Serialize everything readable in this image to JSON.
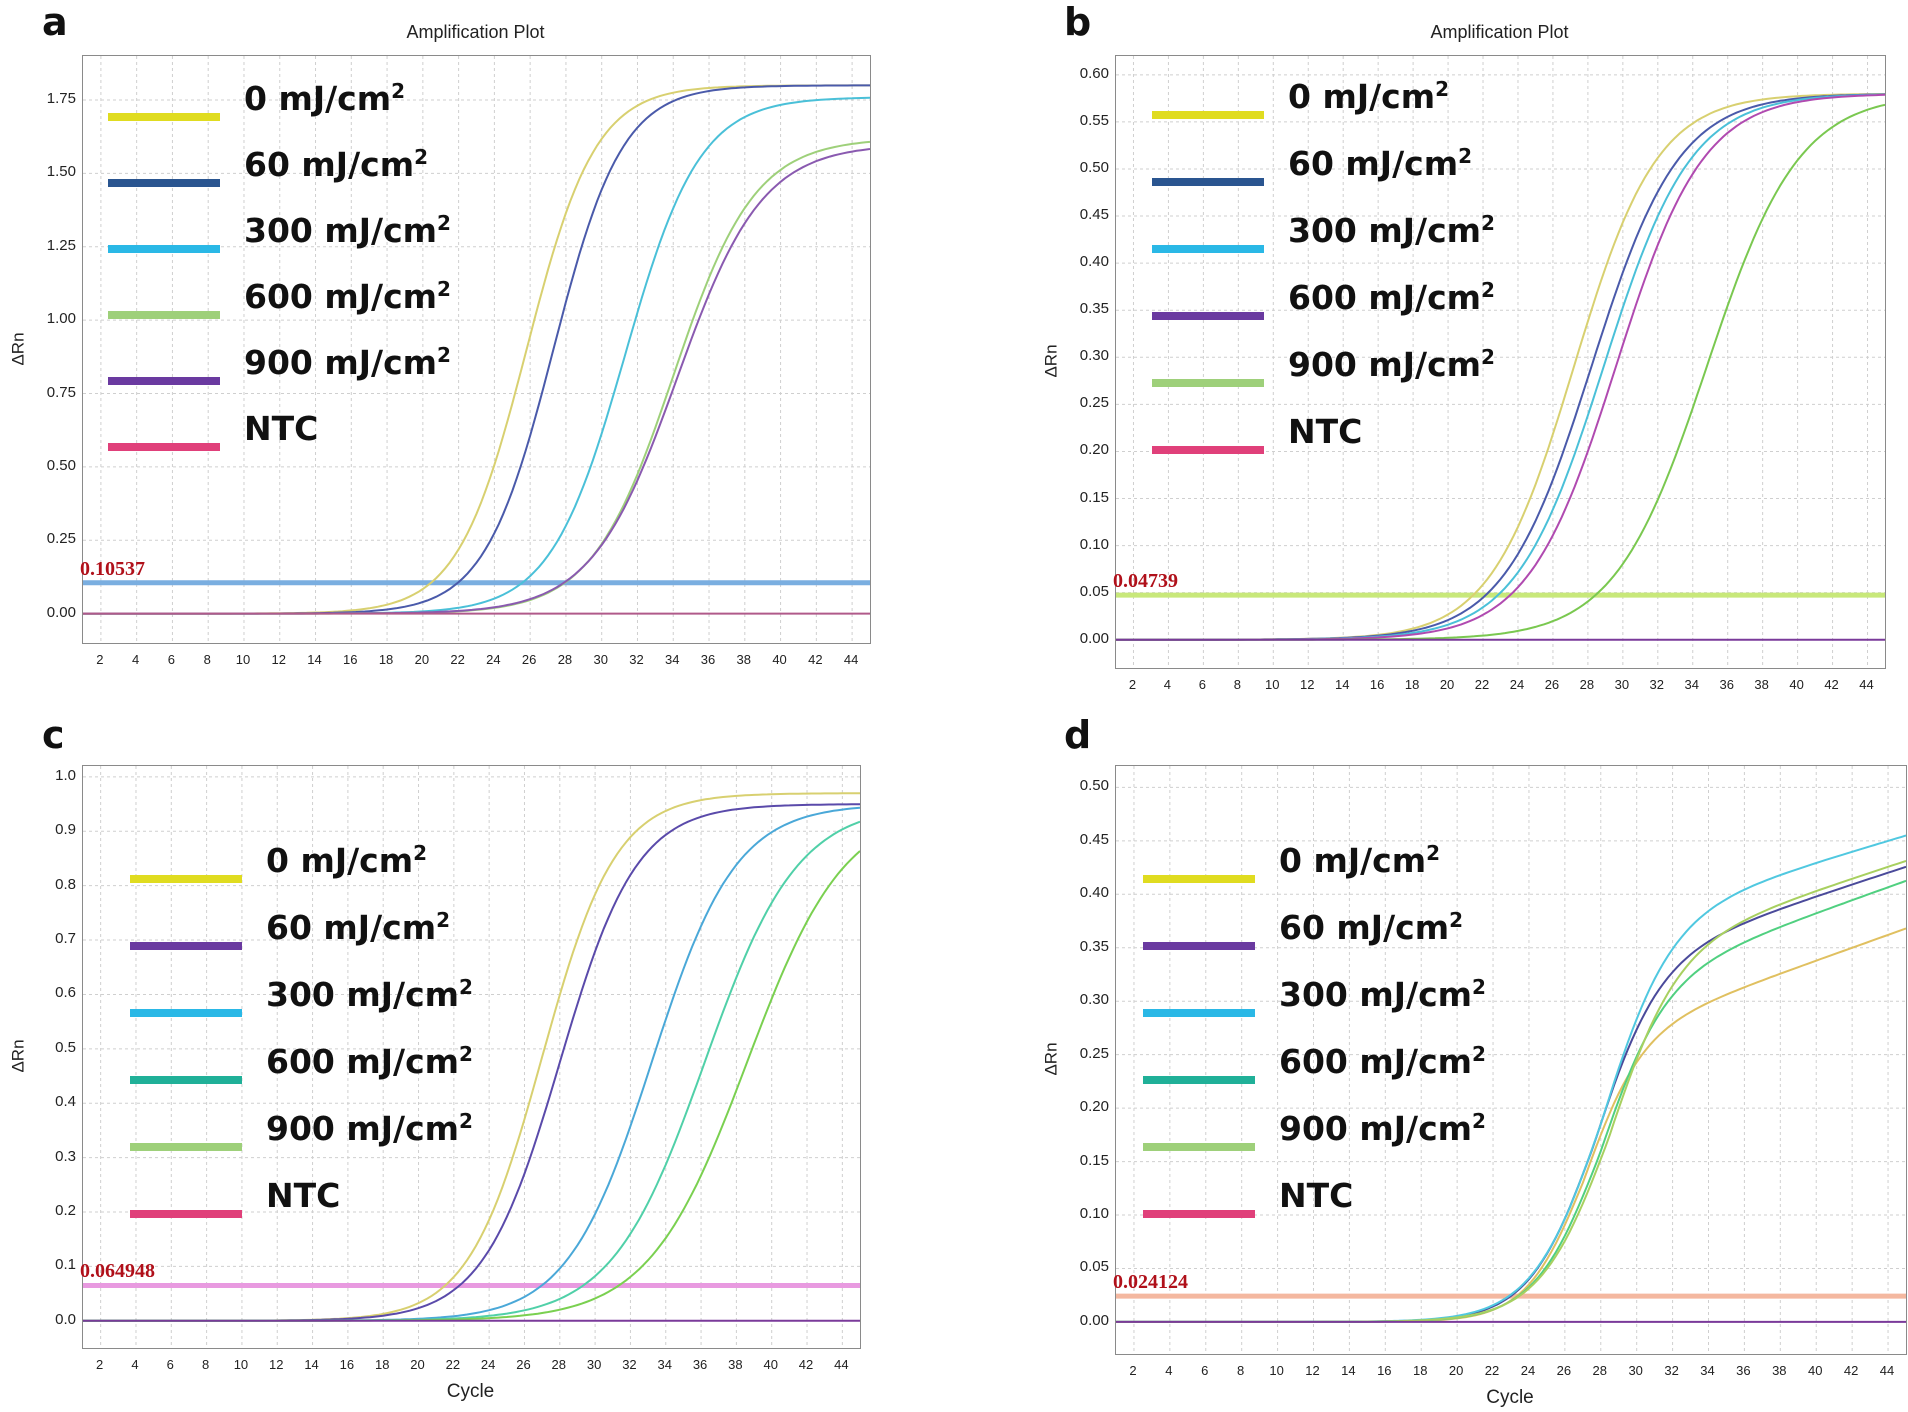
{
  "chart_data": [
    {
      "panel": "a",
      "type": "line",
      "title": "Amplification Plot",
      "ylabel": "ΔRn",
      "xlabel": "",
      "xlim": [
        1,
        45
      ],
      "ylim": [
        -0.1,
        1.9
      ],
      "yticks": [
        "0.00",
        "0.25",
        "0.50",
        "0.75",
        "1.00",
        "1.25",
        "1.50",
        "1.75"
      ],
      "ytick_values": [
        0,
        0.25,
        0.5,
        0.75,
        1.0,
        1.25,
        1.5,
        1.75
      ],
      "xticks": [
        2,
        4,
        6,
        8,
        10,
        12,
        14,
        16,
        18,
        20,
        22,
        24,
        26,
        28,
        30,
        32,
        34,
        36,
        38,
        40,
        42,
        44
      ],
      "threshold": {
        "value": 0.10537,
        "label": "0.10537",
        "color": "#7aaee0"
      },
      "legend": [
        "0 mJ/cm",
        "60 mJ/cm",
        "300 mJ/cm",
        "600 mJ/cm",
        "900 mJ/cm",
        "NTC"
      ],
      "legend_sup": [
        "2",
        "2",
        "2",
        "2",
        "2",
        ""
      ],
      "legend_colors": [
        "#e0dc20",
        "#2a5590",
        "#2ab8e6",
        "#9ed07a",
        "#6a3aa0",
        "#e0407a"
      ],
      "series": [
        {
          "name": "0 mJ/cm2",
          "color": "#d8d070",
          "fmax": 1.8,
          "x0": 25.8,
          "k": 0.52
        },
        {
          "name": "60 mJ/cm2",
          "color": "#4a5aaa",
          "fmax": 1.8,
          "x0": 27.3,
          "k": 0.52
        },
        {
          "name": "300 mJ/cm2",
          "color": "#4ac0d8",
          "fmax": 1.76,
          "x0": 31.3,
          "k": 0.48
        },
        {
          "name": "600 mJ/cm2",
          "color": "#9ed07a",
          "fmax": 1.62,
          "x0": 34.0,
          "k": 0.44
        },
        {
          "name": "900 mJ/cm2",
          "color": "#8a5ab0",
          "fmax": 1.6,
          "x0": 34.2,
          "k": 0.42
        },
        {
          "name": "NTC",
          "color": "#b05a8a",
          "fmax": 0,
          "x0": 0,
          "k": 0
        }
      ]
    },
    {
      "panel": "b",
      "type": "line",
      "title": "Amplification Plot",
      "ylabel": "ΔRn",
      "xlabel": "",
      "xlim": [
        1,
        45
      ],
      "ylim": [
        -0.03,
        0.62
      ],
      "yticks": [
        "0.00",
        "0.05",
        "0.10",
        "0.15",
        "0.20",
        "0.25",
        "0.30",
        "0.35",
        "0.40",
        "0.45",
        "0.50",
        "0.55",
        "0.60"
      ],
      "ytick_values": [
        0,
        0.05,
        0.1,
        0.15,
        0.2,
        0.25,
        0.3,
        0.35,
        0.4,
        0.45,
        0.5,
        0.55,
        0.6
      ],
      "xticks": [
        2,
        4,
        6,
        8,
        10,
        12,
        14,
        16,
        18,
        20,
        22,
        24,
        26,
        28,
        30,
        32,
        34,
        36,
        38,
        40,
        42,
        44
      ],
      "threshold": {
        "value": 0.04739,
        "label": "0.04739",
        "color": "#c8e87a"
      },
      "legend": [
        "0 mJ/cm",
        "60 mJ/cm",
        "300 mJ/cm",
        "600 mJ/cm",
        "900 mJ/cm",
        "NTC"
      ],
      "legend_sup": [
        "2",
        "2",
        "2",
        "2",
        "2",
        ""
      ],
      "legend_colors": [
        "#e0dc20",
        "#2a5590",
        "#2ab8e6",
        "#6a3aa0",
        "#9ed07a",
        "#e0407a"
      ],
      "series": [
        {
          "name": "0 mJ/cm2",
          "color": "#d8d070",
          "fmax": 0.58,
          "x0": 27.2,
          "k": 0.42
        },
        {
          "name": "60 mJ/cm2",
          "color": "#4a5aaa",
          "fmax": 0.58,
          "x0": 28.2,
          "k": 0.4
        },
        {
          "name": "300 mJ/cm2",
          "color": "#4ac0d8",
          "fmax": 0.58,
          "x0": 28.9,
          "k": 0.4
        },
        {
          "name": "600 mJ/cm2",
          "color": "#b04ab0",
          "fmax": 0.58,
          "x0": 29.6,
          "k": 0.4
        },
        {
          "name": "900 mJ/cm2",
          "color": "#7ac850",
          "fmax": 0.58,
          "x0": 34.8,
          "k": 0.38
        },
        {
          "name": "NTC",
          "color": "#7a3a9a",
          "fmax": 0,
          "x0": 0,
          "k": 0
        }
      ]
    },
    {
      "panel": "c",
      "type": "line",
      "title": "",
      "ylabel": "ΔRn",
      "xlabel": "Cycle",
      "xlim": [
        1,
        45
      ],
      "ylim": [
        -0.05,
        1.02
      ],
      "yticks": [
        "0.0",
        "0.1",
        "0.2",
        "0.3",
        "0.4",
        "0.5",
        "0.6",
        "0.7",
        "0.8",
        "0.9",
        "1.0"
      ],
      "ytick_values": [
        0,
        0.1,
        0.2,
        0.3,
        0.4,
        0.5,
        0.6,
        0.7,
        0.8,
        0.9,
        1.0
      ],
      "xticks": [
        2,
        4,
        6,
        8,
        10,
        12,
        14,
        16,
        18,
        20,
        22,
        24,
        26,
        28,
        30,
        32,
        34,
        36,
        38,
        40,
        42,
        44
      ],
      "threshold": {
        "value": 0.064948,
        "label": "0.064948",
        "color": "#e89ae0"
      },
      "legend": [
        "0 mJ/cm",
        "60 mJ/cm",
        "300 mJ/cm",
        "600 mJ/cm",
        "900 mJ/cm",
        "NTC"
      ],
      "legend_sup": [
        "2",
        "2",
        "2",
        "2",
        "2",
        ""
      ],
      "legend_colors": [
        "#e0dc20",
        "#6a3aa0",
        "#2ab8e6",
        "#20b098",
        "#9ed07a",
        "#e0407a"
      ],
      "series": [
        {
          "name": "0 mJ/cm2",
          "color": "#d8d070",
          "fmax": 0.97,
          "x0": 27.0,
          "k": 0.48
        },
        {
          "name": "60 mJ/cm2",
          "color": "#5a4aaa",
          "fmax": 0.95,
          "x0": 28.0,
          "k": 0.46
        },
        {
          "name": "300 mJ/cm2",
          "color": "#4aa8d8",
          "fmax": 0.95,
          "x0": 33.2,
          "k": 0.42
        },
        {
          "name": "600 mJ/cm2",
          "color": "#50d0a8",
          "fmax": 0.95,
          "x0": 36.2,
          "k": 0.38
        },
        {
          "name": "900 mJ/cm2",
          "color": "#7ad050",
          "fmax": 0.95,
          "x0": 38.6,
          "k": 0.36
        },
        {
          "name": "NTC",
          "color": "#7a3a9a",
          "fmax": 0,
          "x0": 0,
          "k": 0
        }
      ]
    },
    {
      "panel": "d",
      "type": "line",
      "title": "",
      "ylabel": "ΔRn",
      "xlabel": "Cycle",
      "xlim": [
        1,
        45
      ],
      "ylim": [
        -0.03,
        0.52
      ],
      "yticks": [
        "0.00",
        "0.05",
        "0.10",
        "0.15",
        "0.20",
        "0.25",
        "0.30",
        "0.35",
        "0.40",
        "0.45",
        "0.50"
      ],
      "ytick_values": [
        0,
        0.05,
        0.1,
        0.15,
        0.2,
        0.25,
        0.3,
        0.35,
        0.4,
        0.45,
        0.5
      ],
      "xticks": [
        2,
        4,
        6,
        8,
        10,
        12,
        14,
        16,
        18,
        20,
        22,
        24,
        26,
        28,
        30,
        32,
        34,
        36,
        38,
        40,
        42,
        44
      ],
      "threshold": {
        "value": 0.024124,
        "label": "0.024124",
        "color": "#f4b8a0"
      },
      "legend": [
        "0 mJ/cm",
        "60 mJ/cm",
        "300 mJ/cm",
        "600 mJ/cm",
        "900 mJ/cm",
        "NTC"
      ],
      "legend_sup": [
        "2",
        "2",
        "2",
        "2",
        "2",
        ""
      ],
      "legend_colors": [
        "#e0dc20",
        "#6a3aa0",
        "#2ab8e6",
        "#20b098",
        "#9ed07a",
        "#e0407a"
      ],
      "series": [
        {
          "name": "0 mJ/cm2",
          "color": "#e0c060",
          "fmax": 0.26,
          "x0": 27.0,
          "k": 0.62,
          "slope": 0.006
        },
        {
          "name": "60 mJ/cm2",
          "color": "#4a4a9a",
          "fmax": 0.33,
          "x0": 27.6,
          "k": 0.55,
          "slope": 0.0055
        },
        {
          "name": "300 mJ/cm2",
          "color": "#50c8e0",
          "fmax": 0.37,
          "x0": 28.0,
          "k": 0.52,
          "slope": 0.005
        },
        {
          "name": "600 mJ/cm2",
          "color": "#50d080",
          "fmax": 0.31,
          "x0": 27.9,
          "k": 0.55,
          "slope": 0.006
        },
        {
          "name": "900 mJ/cm2",
          "color": "#a8d060",
          "fmax": 0.34,
          "x0": 28.4,
          "k": 0.52,
          "slope": 0.0055
        },
        {
          "name": "NTC",
          "color": "#7a3a9a",
          "fmax": 0,
          "x0": 0,
          "k": 0
        }
      ]
    }
  ]
}
